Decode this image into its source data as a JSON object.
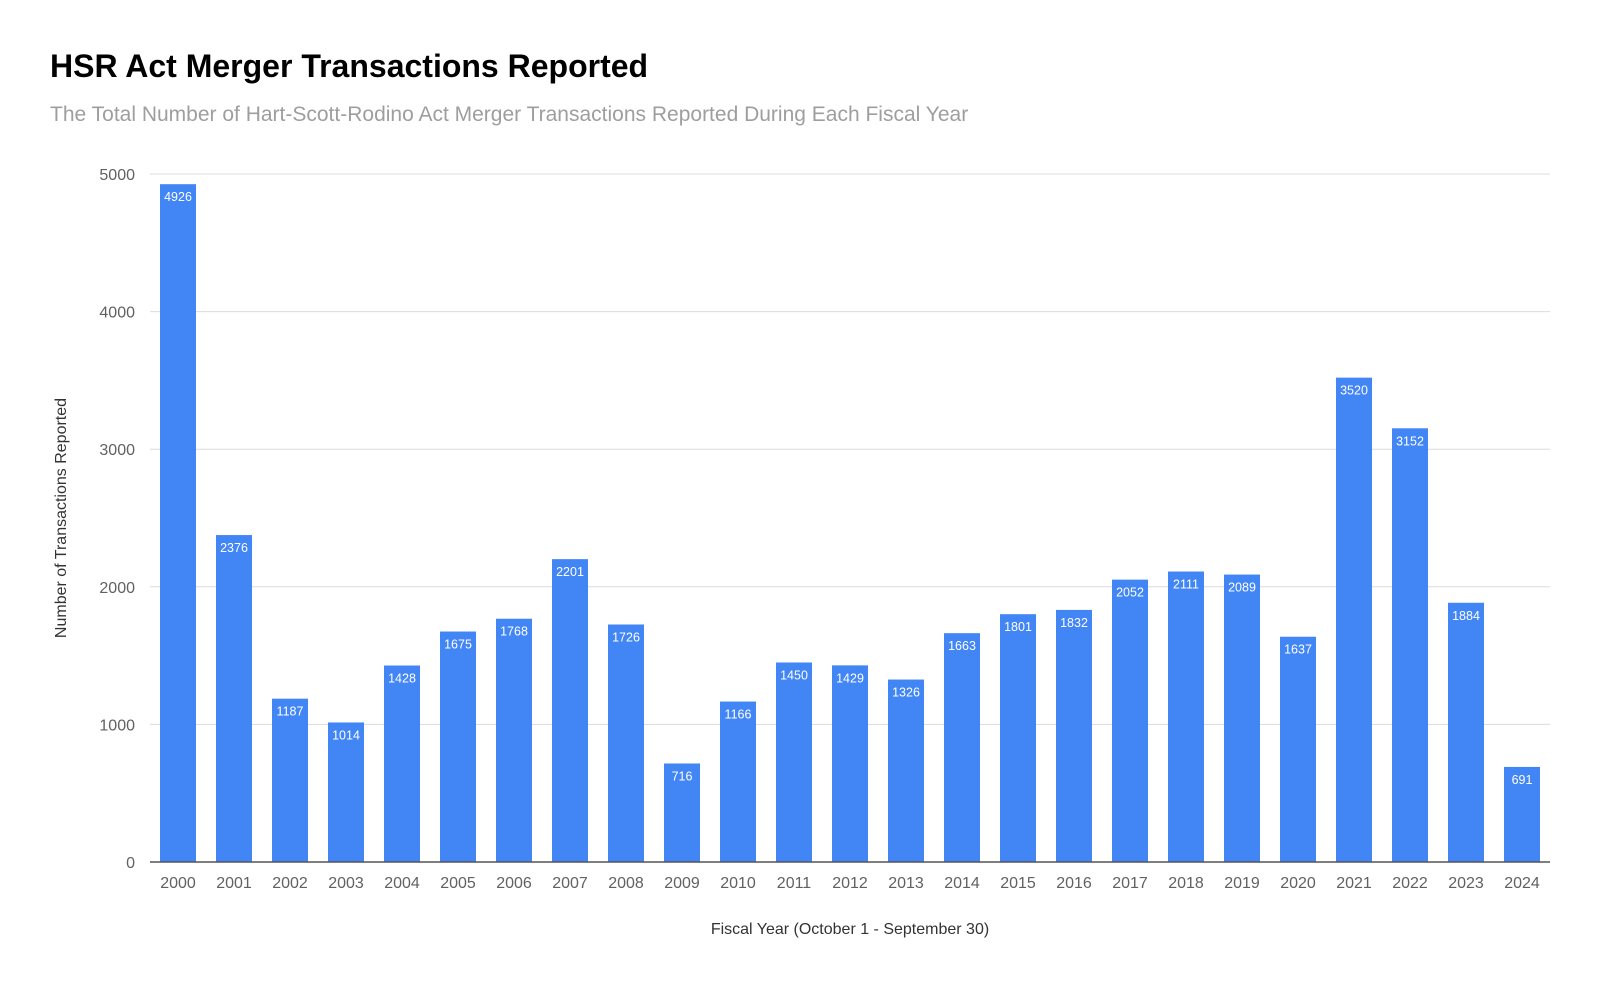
{
  "title": "HSR Act Merger Transactions Reported",
  "subtitle": "The Total Number of Hart-Scott-Rodino Act Merger Transactions Reported During Each Fiscal Year",
  "chart_data": {
    "type": "bar",
    "title": "HSR Act Merger Transactions Reported",
    "subtitle": "The Total Number of Hart-Scott-Rodino Act Merger Transactions Reported During Each Fiscal Year",
    "xlabel": "Fiscal Year (October 1 - September 30)",
    "ylabel": "Number of Transactions Reported",
    "categories": [
      "2000",
      "2001",
      "2002",
      "2003",
      "2004",
      "2005",
      "2006",
      "2007",
      "2008",
      "2009",
      "2010",
      "2011",
      "2012",
      "2013",
      "2014",
      "2015",
      "2016",
      "2017",
      "2018",
      "2019",
      "2020",
      "2021",
      "2022",
      "2023",
      "2024"
    ],
    "values": [
      4926,
      2376,
      1187,
      1014,
      1428,
      1675,
      1768,
      2201,
      1726,
      716,
      1166,
      1450,
      1429,
      1326,
      1663,
      1801,
      1832,
      2052,
      2111,
      2089,
      1637,
      3520,
      3152,
      1884,
      691
    ],
    "ylim": [
      0,
      5000
    ],
    "yticks": [
      0,
      1000,
      2000,
      3000,
      4000,
      5000
    ],
    "grid": true,
    "legend": "none",
    "data_labels": true,
    "bar_color": "#4285f4"
  }
}
